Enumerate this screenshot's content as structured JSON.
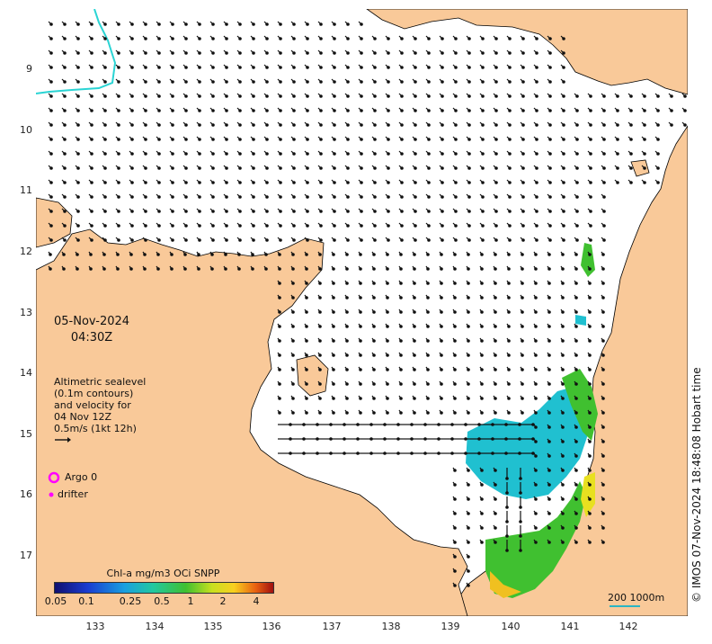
{
  "date": "05-Nov-2024",
  "time": "04:30Z",
  "legend_lines": [
    "Altimetric sealevel",
    "(0.1m contours)",
    "and velocity for",
    "04 Nov 12Z",
    "0.5m/s (1kt 12h)"
  ],
  "argo_label": "Argo 0",
  "drifter_label": "drifter",
  "colorbar_title": "Chl-a mg/m3 OCi SNPP",
  "colorbar_ticks": [
    "0.05",
    "0.1",
    "0.25",
    "0.5",
    "1",
    "2",
    "4"
  ],
  "scale_label": "200  1000m",
  "credit": "© IMOS 07-Nov-2024 18:48:08 Hobart time",
  "lat_ticks": [
    "9",
    "10",
    "11",
    "12",
    "13",
    "14",
    "15",
    "16",
    "17"
  ],
  "lon_ticks": [
    "133",
    "134",
    "135",
    "136",
    "137",
    "138",
    "139",
    "140",
    "141",
    "142"
  ],
  "colors": {
    "land": "#f9c999",
    "ocean": "#ffffff",
    "depth_contour": "#2ad4d4",
    "argo": "#ff00ff",
    "drifter": "#ff00ff",
    "arrow": "#111111"
  }
}
